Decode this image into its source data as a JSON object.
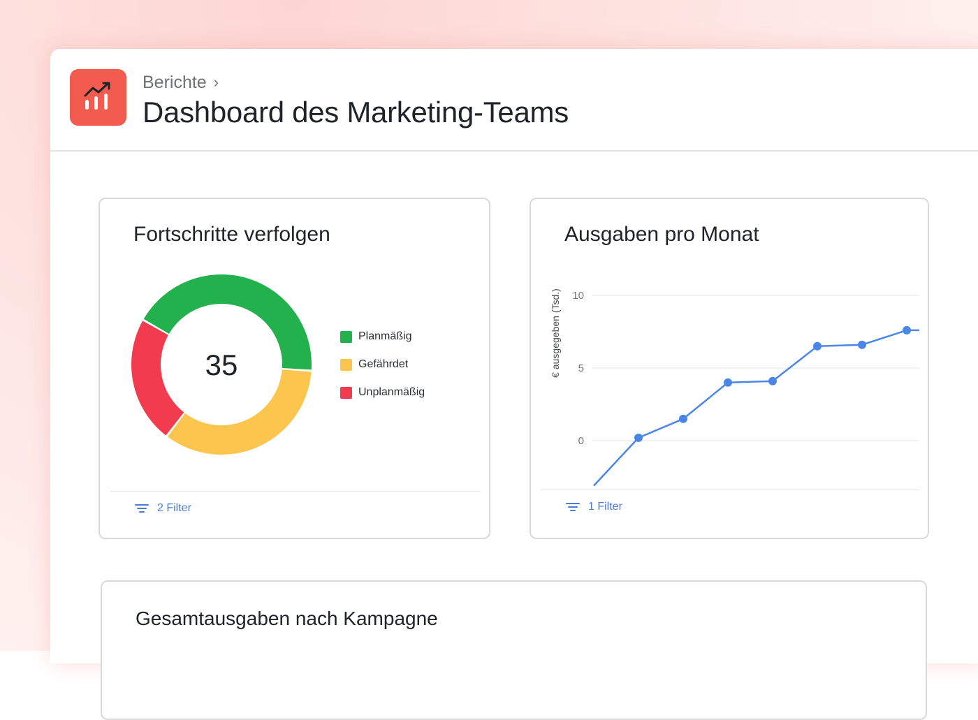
{
  "header": {
    "breadcrumb": "Berichte",
    "title": "Dashboard des Marketing-Teams",
    "icon": "report-chart-icon",
    "icon_color": "#f25c4f"
  },
  "card_progress": {
    "title": "Fortschritte verfolgen",
    "center_value": "35",
    "filter_label": "2 Filter",
    "filter_icon": "filter-icon"
  },
  "card_spend": {
    "title": "Ausgaben pro Monat",
    "filter_label": "1 Filter",
    "filter_icon": "filter-icon"
  },
  "card_campaign": {
    "title": "Gesamtausgaben nach Kampagne"
  },
  "chart_data": [
    {
      "type": "pie",
      "variant": "donut",
      "center_label": "35",
      "legend_position": "right",
      "slices": [
        {
          "label": "Planmäßig",
          "value": 15,
          "color": "#22b14c"
        },
        {
          "label": "Gefährdet",
          "value": 12,
          "color": "#fcc54e"
        },
        {
          "label": "Unplanmäßig",
          "value": 8,
          "color": "#f23b4e"
        }
      ]
    },
    {
      "type": "line",
      "title": "Ausgaben pro Monat",
      "xlabel": "",
      "ylabel": "€ ausgegeben (Tsd.)",
      "ylim": [
        -3,
        10
      ],
      "yticks": [
        0,
        5,
        10
      ],
      "grid": true,
      "color": "#4a86e8",
      "x": [
        0,
        1,
        2,
        3,
        4,
        5,
        6,
        7,
        8
      ],
      "values": [
        -3.1,
        0.2,
        1.5,
        4.0,
        4.1,
        6.5,
        6.6,
        7.6,
        7.6
      ],
      "markers": [
        false,
        true,
        true,
        true,
        true,
        true,
        true,
        true,
        false
      ]
    }
  ]
}
